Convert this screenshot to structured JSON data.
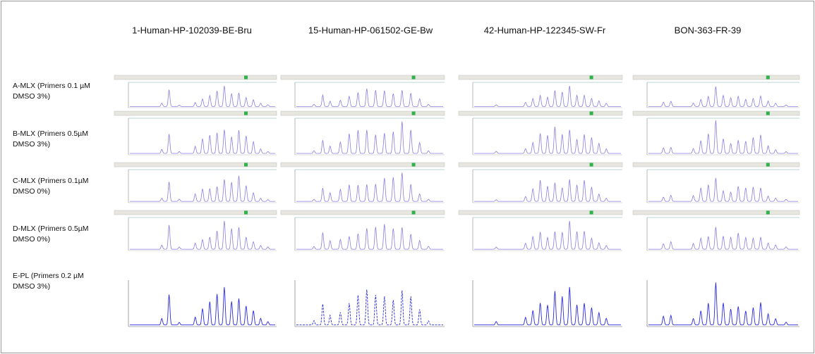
{
  "columns": [
    "1-Human-HP-102039-BE-Bru",
    "15-Human-HP-061502-GE-Bw",
    "42-Human-HP-122345-SW-Fr",
    "BON-363-FR-39"
  ],
  "rows": [
    {
      "label": [
        "A-MLX (Primers 0.1 µM",
        "DMSO 3%)"
      ]
    },
    {
      "label": [
        "B-MLX (Primers 0.5µM",
        "DMSO 3%)"
      ]
    },
    {
      "label": [
        "C-MLX (Primers 0.1µM",
        "DMSO 0%)"
      ]
    },
    {
      "label": [
        "D-MLX (Primers 0.5µM",
        "DMSO 0%)"
      ]
    },
    {
      "label": [
        "E-PL (Primers 0.2 µM",
        "DMSO 3%)"
      ]
    }
  ]
}
